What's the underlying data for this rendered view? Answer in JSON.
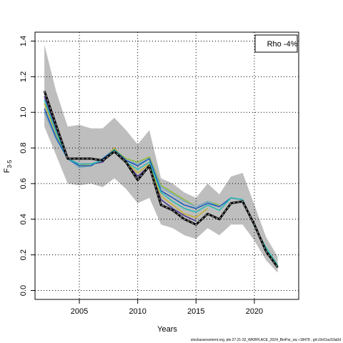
{
  "chart_data": {
    "type": "line",
    "xlabel": "Years",
    "ylabel_main": "F",
    "ylabel_sub": "3-5",
    "legend_text": "Rho -4%",
    "legend_position": "top-right",
    "footer": "stockassessment.org, ple.27.21-32_WKBPLACE_2024_BioPar_sw, r18478 , git:c9c61ac53a0d",
    "xlim": [
      2001.2,
      2023.8
    ],
    "ylim": [
      -0.05,
      1.45
    ],
    "x_ticks": [
      2005,
      2010,
      2015,
      2020
    ],
    "x_tick_labels": [
      "2005",
      "2010",
      "2015",
      "2020"
    ],
    "y_ticks": [
      0.0,
      0.2,
      0.4,
      0.6,
      0.8,
      1.0,
      1.2,
      1.4
    ],
    "y_tick_labels": [
      "0.0",
      "0.2",
      "0.4",
      "0.6",
      "0.8",
      "1.0",
      "1.2",
      "1.4"
    ],
    "grid": true,
    "colors": {
      "band": "#bebebe",
      "main_line": "#000000",
      "main_dash": "#bebebe",
      "peels": [
        "#2bb9b2",
        "#1f5cb8",
        "#7da8c8",
        "#8fbc3c",
        "#c4b13a",
        "#4a3a8c",
        "#3d1860"
      ]
    },
    "ci_band": {
      "x": [
        2002,
        2003,
        2004,
        2005,
        2006,
        2007,
        2008,
        2009,
        2010,
        2011,
        2012,
        2013,
        2014,
        2015,
        2016,
        2017,
        2018,
        2019,
        2020,
        2021,
        2022
      ],
      "lower": [
        0.92,
        0.76,
        0.6,
        0.59,
        0.6,
        0.58,
        0.63,
        0.57,
        0.49,
        0.52,
        0.37,
        0.35,
        0.31,
        0.29,
        0.35,
        0.31,
        0.37,
        0.37,
        0.28,
        0.17,
        0.1
      ],
      "upper": [
        1.38,
        1.12,
        0.92,
        0.93,
        0.91,
        0.91,
        0.97,
        0.9,
        0.82,
        0.9,
        0.63,
        0.6,
        0.55,
        0.52,
        0.6,
        0.54,
        0.64,
        0.66,
        0.48,
        0.3,
        0.19
      ]
    },
    "series": [
      {
        "values": [
          1.12,
          0.93,
          0.74,
          0.74,
          0.74,
          0.73,
          0.78,
          0.72,
          0.62,
          0.7,
          0.48,
          0.45,
          0.4,
          0.37,
          0.43,
          0.4,
          0.49,
          0.5,
          0.37,
          0.22,
          0.13
        ]
      },
      {
        "values": [
          1.07,
          0.89,
          0.74,
          0.71,
          0.71,
          0.73,
          0.79,
          0.72,
          0.68,
          0.72,
          0.55,
          0.5,
          0.46,
          0.44,
          0.48,
          0.45,
          0.52,
          0.51,
          0.36,
          0.24,
          0.14
        ]
      },
      {
        "values": [
          1.02,
          0.86,
          0.74,
          0.7,
          0.7,
          0.74,
          0.79,
          0.73,
          0.7,
          0.74,
          0.56,
          0.52,
          0.48,
          0.46,
          0.49,
          0.47,
          0.52,
          0.51
        ]
      },
      {
        "values": [
          1.0,
          0.85,
          0.74,
          0.69,
          0.7,
          0.74,
          0.79,
          0.73,
          0.71,
          0.74,
          0.58,
          0.54,
          0.5,
          0.47,
          0.5,
          0.47,
          0.52
        ]
      },
      {
        "values": [
          1.0,
          0.85,
          0.74,
          0.69,
          0.7,
          0.74,
          0.79,
          0.74,
          0.72,
          0.75,
          0.59,
          0.55,
          0.51,
          0.47,
          0.5,
          0.48
        ]
      },
      {
        "values": [
          1.05,
          0.88,
          0.74,
          0.7,
          0.71,
          0.73,
          0.8,
          0.72,
          0.66,
          0.71,
          0.53,
          0.48,
          0.43,
          0.41,
          0.46
        ]
      },
      {
        "values": [
          1.09,
          0.91,
          0.74,
          0.71,
          0.71,
          0.72,
          0.8,
          0.72,
          0.64,
          0.7,
          0.51,
          0.46,
          0.42,
          0.39
        ]
      }
    ]
  }
}
